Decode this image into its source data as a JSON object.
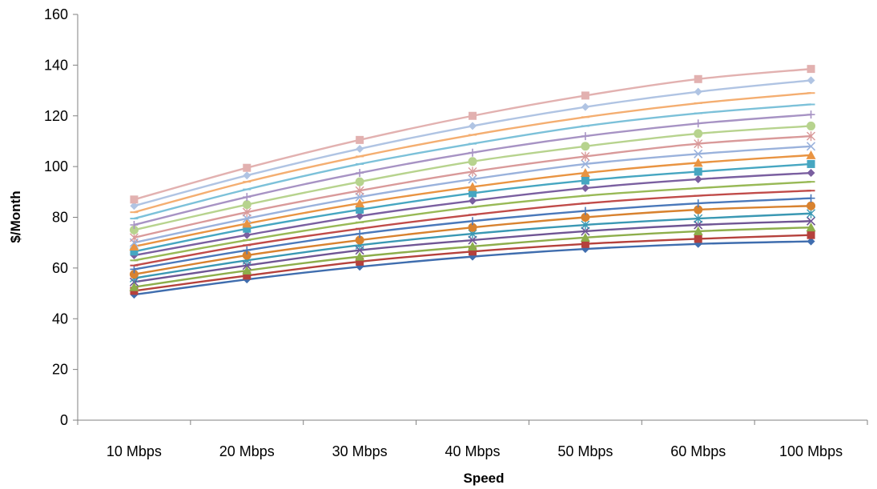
{
  "chart_data": {
    "type": "line",
    "title": "",
    "xlabel": "Speed",
    "ylabel": "$/Month",
    "ylim": [
      0,
      160
    ],
    "yticks": [
      0,
      20,
      40,
      60,
      80,
      100,
      120,
      140,
      160
    ],
    "grid": false,
    "legend": "none",
    "categories": [
      "10 Mbps",
      "20 Mbps",
      "30 Mbps",
      "40 Mbps",
      "50 Mbps",
      "60 Mbps",
      "100 Mbps"
    ],
    "series": [
      {
        "color": "#3F6DAE",
        "marker": "diamond",
        "values": [
          49.5,
          55.5,
          60.5,
          64.5,
          67.5,
          69.5,
          70.5
        ]
      },
      {
        "color": "#B5413C",
        "marker": "square",
        "values": [
          51,
          57,
          62.5,
          66.5,
          69.5,
          71.5,
          73
        ]
      },
      {
        "color": "#8DAE4B",
        "marker": "triangle",
        "values": [
          52.5,
          59,
          64.5,
          68.5,
          72,
          74.5,
          76
        ]
      },
      {
        "color": "#6F5594",
        "marker": "x",
        "values": [
          54.5,
          61,
          67,
          71,
          74.5,
          77,
          78.5
        ]
      },
      {
        "color": "#3A98B3",
        "marker": "star",
        "values": [
          56,
          63,
          69,
          73.5,
          77,
          79.5,
          81.5
        ]
      },
      {
        "color": "#D8822F",
        "marker": "circle",
        "values": [
          57.5,
          65,
          71,
          76,
          80,
          83,
          84.5
        ]
      },
      {
        "color": "#4A78BA",
        "marker": "plus",
        "values": [
          59.5,
          67,
          73.5,
          78.5,
          82.5,
          85.5,
          87.5
        ]
      },
      {
        "color": "#C04B49",
        "marker": "dash",
        "values": [
          61,
          69,
          75.5,
          81,
          85.5,
          88.5,
          90.5
        ]
      },
      {
        "color": "#98B956",
        "marker": "dash",
        "values": [
          63,
          71,
          78,
          84,
          88.5,
          91.5,
          94
        ]
      },
      {
        "color": "#7A5FA0",
        "marker": "diamond",
        "values": [
          65,
          73,
          80.5,
          86.5,
          91.5,
          95,
          97.5
        ]
      },
      {
        "color": "#46A6C1",
        "marker": "square",
        "values": [
          66.5,
          75.5,
          83,
          89.5,
          94.5,
          98,
          101
        ]
      },
      {
        "color": "#E99442",
        "marker": "triangle",
        "values": [
          68.5,
          77.5,
          85.5,
          92,
          97.5,
          101.5,
          104.5
        ]
      },
      {
        "color": "#9AB2DC",
        "marker": "x",
        "values": [
          70,
          79.5,
          88,
          95,
          101,
          105,
          108
        ]
      },
      {
        "color": "#D99A9A",
        "marker": "star",
        "values": [
          72,
          82,
          90.5,
          98,
          104,
          109,
          112
        ]
      },
      {
        "color": "#B7D38E",
        "marker": "circle",
        "values": [
          75,
          85,
          94,
          102,
          108,
          113,
          116
        ]
      },
      {
        "color": "#A793C4",
        "marker": "plus",
        "values": [
          77,
          88,
          97.5,
          105.5,
          112,
          117,
          120.5
        ]
      },
      {
        "color": "#7CC1D9",
        "marker": "dash",
        "values": [
          79.5,
          91,
          101,
          109,
          116,
          121,
          124.5
        ]
      },
      {
        "color": "#F4AE71",
        "marker": "dash",
        "values": [
          82,
          94,
          104,
          112.5,
          119.5,
          125,
          129
        ]
      },
      {
        "color": "#B0C4E3",
        "marker": "diamond",
        "values": [
          84.5,
          96.5,
          107,
          116,
          123.5,
          129.5,
          134
        ]
      },
      {
        "color": "#E2B1B0",
        "marker": "square",
        "values": [
          87,
          99.5,
          110.5,
          120,
          128,
          134.5,
          138.5
        ]
      }
    ]
  }
}
